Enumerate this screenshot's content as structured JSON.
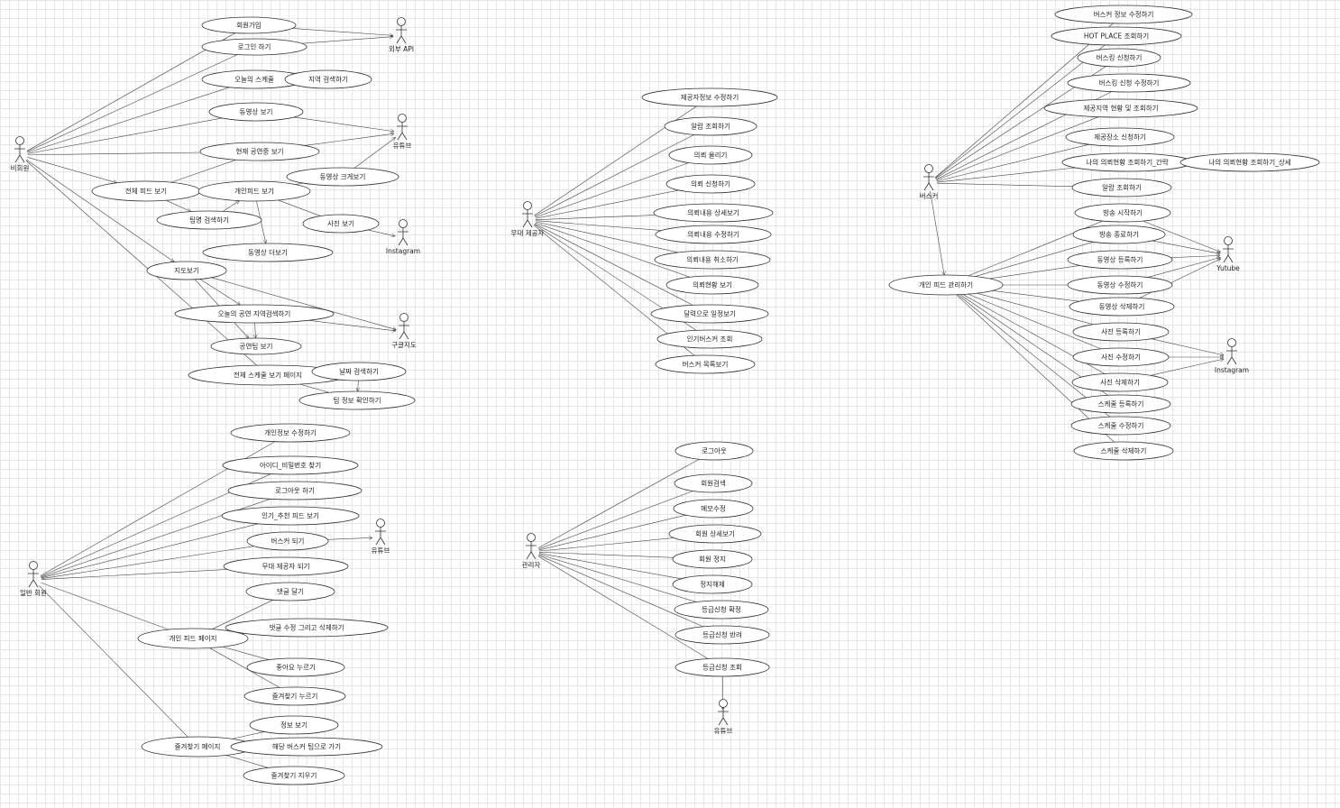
{
  "diagram_type": "UML use case diagram",
  "actors": [
    {
      "id": "guest",
      "label": "비회원"
    },
    {
      "id": "extapi",
      "label": "외부 API"
    },
    {
      "id": "yt1",
      "label": "유튜브"
    },
    {
      "id": "insta1",
      "label": "Instagram"
    },
    {
      "id": "gmap",
      "label": "구글지도"
    },
    {
      "id": "member",
      "label": "일반 회원"
    },
    {
      "id": "yt2",
      "label": "유튜브"
    },
    {
      "id": "stage",
      "label": "무대 제공자"
    },
    {
      "id": "admin",
      "label": "관리자"
    },
    {
      "id": "yt3",
      "label": "유튜브"
    },
    {
      "id": "busker",
      "label": "버스커"
    },
    {
      "id": "ytube",
      "label": "Yutube"
    },
    {
      "id": "insta2",
      "label": "Instagram"
    }
  ],
  "use_cases": [
    {
      "id": "g1",
      "label": "회원가입"
    },
    {
      "id": "g2",
      "label": "로그인 하기"
    },
    {
      "id": "g3",
      "label": "오늘의 스케줄"
    },
    {
      "id": "g4",
      "label": "지역 검색하기"
    },
    {
      "id": "g5",
      "label": "동영상 보기"
    },
    {
      "id": "g6",
      "label": "현재 공연중 보기"
    },
    {
      "id": "g7",
      "label": "전체 피드 보기"
    },
    {
      "id": "g8",
      "label": "개인피드 보기"
    },
    {
      "id": "g9",
      "label": "동영상 크게보기"
    },
    {
      "id": "g10",
      "label": "팀명 검색하기"
    },
    {
      "id": "g11",
      "label": "사진 보기"
    },
    {
      "id": "g12",
      "label": "동영상 더보기"
    },
    {
      "id": "g13",
      "label": "지도보기"
    },
    {
      "id": "g14",
      "label": "오늘의 공연 지역검색하기"
    },
    {
      "id": "g15",
      "label": "공연팀 보기"
    },
    {
      "id": "g16",
      "label": "전체 스케줄 보기 페이지"
    },
    {
      "id": "g17",
      "label": "날짜 검색하기"
    },
    {
      "id": "g18",
      "label": "팀 정보 확인하기"
    },
    {
      "id": "m1",
      "label": "개인정보 수정하기"
    },
    {
      "id": "m2",
      "label": "아이디_비밀번호 찾기"
    },
    {
      "id": "m3",
      "label": "로그아웃 하기"
    },
    {
      "id": "m4",
      "label": "인기_추천 피드 보기"
    },
    {
      "id": "m5",
      "label": "버스커 되기"
    },
    {
      "id": "m6",
      "label": "무대 제공자 되기"
    },
    {
      "id": "m7",
      "label": "댓글 달기"
    },
    {
      "id": "m8",
      "label": "개인 피드 페이지"
    },
    {
      "id": "m9",
      "label": "댓글 수정 그리고 삭제하기"
    },
    {
      "id": "m10",
      "label": "좋아요 누르기"
    },
    {
      "id": "m11",
      "label": "즐겨찾기 누르기"
    },
    {
      "id": "m12",
      "label": "정보 보기"
    },
    {
      "id": "m13",
      "label": "즐겨찾기 페이지"
    },
    {
      "id": "m14",
      "label": "해당 버스커 팀으로 가기"
    },
    {
      "id": "m15",
      "label": "즐겨찾기 지우기"
    },
    {
      "id": "s1",
      "label": "제공자정보 수정하기"
    },
    {
      "id": "s2",
      "label": "알람 조회하기"
    },
    {
      "id": "s3",
      "label": "의뢰 올리기"
    },
    {
      "id": "s4",
      "label": "의뢰 신청하기"
    },
    {
      "id": "s5",
      "label": "의뢰내용 상세보기"
    },
    {
      "id": "s6",
      "label": "의뢰내용 수정하기"
    },
    {
      "id": "s7",
      "label": "의뢰내용 취소하기"
    },
    {
      "id": "s8",
      "label": "의뢰현황 보기"
    },
    {
      "id": "s9",
      "label": "달력으로 일정보기"
    },
    {
      "id": "s10",
      "label": "인기버스커 조회"
    },
    {
      "id": "s11",
      "label": "버스커 목록보기"
    },
    {
      "id": "a1",
      "label": "로그아웃"
    },
    {
      "id": "a2",
      "label": "회원검색"
    },
    {
      "id": "a3",
      "label": "메모수정"
    },
    {
      "id": "a4",
      "label": "회원 상세보기"
    },
    {
      "id": "a5",
      "label": "회원 정지"
    },
    {
      "id": "a6",
      "label": "정지해제"
    },
    {
      "id": "a7",
      "label": "등급신청 확정"
    },
    {
      "id": "a8",
      "label": "등급신청 반려"
    },
    {
      "id": "a9",
      "label": "등급신청 조회"
    },
    {
      "id": "b1",
      "label": "버스커 정보 수정하기"
    },
    {
      "id": "b2",
      "label": "HOT PLACE 조회하기"
    },
    {
      "id": "b3",
      "label": "버스킹 신청하기"
    },
    {
      "id": "b4",
      "label": "버스킹 신청 수정하기"
    },
    {
      "id": "b5",
      "label": "제공지역 현황 및 조회하기"
    },
    {
      "id": "b6",
      "label": "제공장소 신청하기"
    },
    {
      "id": "b7",
      "label": "나의 의뢰현황 조회하기_간략"
    },
    {
      "id": "b8",
      "label": "나의 의뢰현황 조회하기_상세"
    },
    {
      "id": "b9",
      "label": "알람 조회하기"
    },
    {
      "id": "b10",
      "label": "방송 시작하기"
    },
    {
      "id": "b11",
      "label": "방송 종료하기"
    },
    {
      "id": "b12",
      "label": "동영상 등록하기"
    },
    {
      "id": "b13",
      "label": "동영상 수정하기"
    },
    {
      "id": "b14",
      "label": "동영상 삭제하기"
    },
    {
      "id": "b15",
      "label": "개인 피드 관리하기"
    },
    {
      "id": "b16",
      "label": "사진 등록하기"
    },
    {
      "id": "b17",
      "label": "사진 수정하기"
    },
    {
      "id": "b18",
      "label": "사진 삭제하기"
    },
    {
      "id": "b19",
      "label": "스케줄 등록하기"
    },
    {
      "id": "b20",
      "label": "스케줄 수정하기"
    },
    {
      "id": "b21",
      "label": "스케줄 삭제하기"
    }
  ],
  "associations": [
    [
      "guest",
      "g1"
    ],
    [
      "guest",
      "g2"
    ],
    [
      "guest",
      "g3"
    ],
    [
      "guest",
      "g5"
    ],
    [
      "guest",
      "g6"
    ],
    [
      "guest",
      "g7"
    ],
    [
      "guest",
      "g13"
    ],
    [
      "guest",
      "g16"
    ],
    [
      "g1",
      "extapi"
    ],
    [
      "g2",
      "extapi"
    ],
    [
      "g3",
      "g4"
    ],
    [
      "g5",
      "yt1"
    ],
    [
      "g6",
      "yt1"
    ],
    [
      "g9",
      "yt1"
    ],
    [
      "g7",
      "g6"
    ],
    [
      "g7",
      "g8"
    ],
    [
      "g7",
      "g10"
    ],
    [
      "g10",
      "g8"
    ],
    [
      "g8",
      "g9"
    ],
    [
      "g8",
      "g11"
    ],
    [
      "g8",
      "g12"
    ],
    [
      "g11",
      "insta1"
    ],
    [
      "g13",
      "g14"
    ],
    [
      "g13",
      "g15"
    ],
    [
      "g13",
      "gmap"
    ],
    [
      "g14",
      "gmap"
    ],
    [
      "g14",
      "g15"
    ],
    [
      "g16",
      "g17"
    ],
    [
      "g16",
      "g18"
    ],
    [
      "g17",
      "g18"
    ],
    [
      "member",
      "m1"
    ],
    [
      "member",
      "m2"
    ],
    [
      "member",
      "m3"
    ],
    [
      "member",
      "m4"
    ],
    [
      "member",
      "m5"
    ],
    [
      "member",
      "m6"
    ],
    [
      "member",
      "m8"
    ],
    [
      "member",
      "m13"
    ],
    [
      "m5",
      "yt2"
    ],
    [
      "m8",
      "m7"
    ],
    [
      "m8",
      "m9"
    ],
    [
      "m8",
      "m10"
    ],
    [
      "m8",
      "m11"
    ],
    [
      "m13",
      "m12"
    ],
    [
      "m13",
      "m14"
    ],
    [
      "m13",
      "m15"
    ],
    [
      "stage",
      "s1"
    ],
    [
      "stage",
      "s2"
    ],
    [
      "stage",
      "s3"
    ],
    [
      "stage",
      "s4"
    ],
    [
      "stage",
      "s5"
    ],
    [
      "stage",
      "s6"
    ],
    [
      "stage",
      "s7"
    ],
    [
      "stage",
      "s8"
    ],
    [
      "stage",
      "s9"
    ],
    [
      "stage",
      "s10"
    ],
    [
      "stage",
      "s11"
    ],
    [
      "admin",
      "a1"
    ],
    [
      "admin",
      "a2"
    ],
    [
      "admin",
      "a3"
    ],
    [
      "admin",
      "a4"
    ],
    [
      "admin",
      "a5"
    ],
    [
      "admin",
      "a6"
    ],
    [
      "admin",
      "a7"
    ],
    [
      "admin",
      "a8"
    ],
    [
      "admin",
      "a9"
    ],
    [
      "a9",
      "yt3"
    ],
    [
      "busker",
      "b1"
    ],
    [
      "busker",
      "b2"
    ],
    [
      "busker",
      "b3"
    ],
    [
      "busker",
      "b4"
    ],
    [
      "busker",
      "b5"
    ],
    [
      "busker",
      "b6"
    ],
    [
      "busker",
      "b7"
    ],
    [
      "busker",
      "b9"
    ],
    [
      "busker",
      "b15"
    ],
    [
      "b7",
      "b8"
    ],
    [
      "b15",
      "b10"
    ],
    [
      "b15",
      "b11"
    ],
    [
      "b15",
      "b12"
    ],
    [
      "b15",
      "b13"
    ],
    [
      "b15",
      "b14"
    ],
    [
      "b15",
      "b16"
    ],
    [
      "b15",
      "b17"
    ],
    [
      "b15",
      "b18"
    ],
    [
      "b15",
      "b19"
    ],
    [
      "b15",
      "b20"
    ],
    [
      "b15",
      "b21"
    ],
    [
      "b10",
      "ytube"
    ],
    [
      "b11",
      "ytube"
    ],
    [
      "b12",
      "ytube"
    ],
    [
      "b13",
      "ytube"
    ],
    [
      "b14",
      "ytube"
    ],
    [
      "b16",
      "insta2"
    ],
    [
      "b17",
      "insta2"
    ],
    [
      "b18",
      "insta2"
    ]
  ]
}
